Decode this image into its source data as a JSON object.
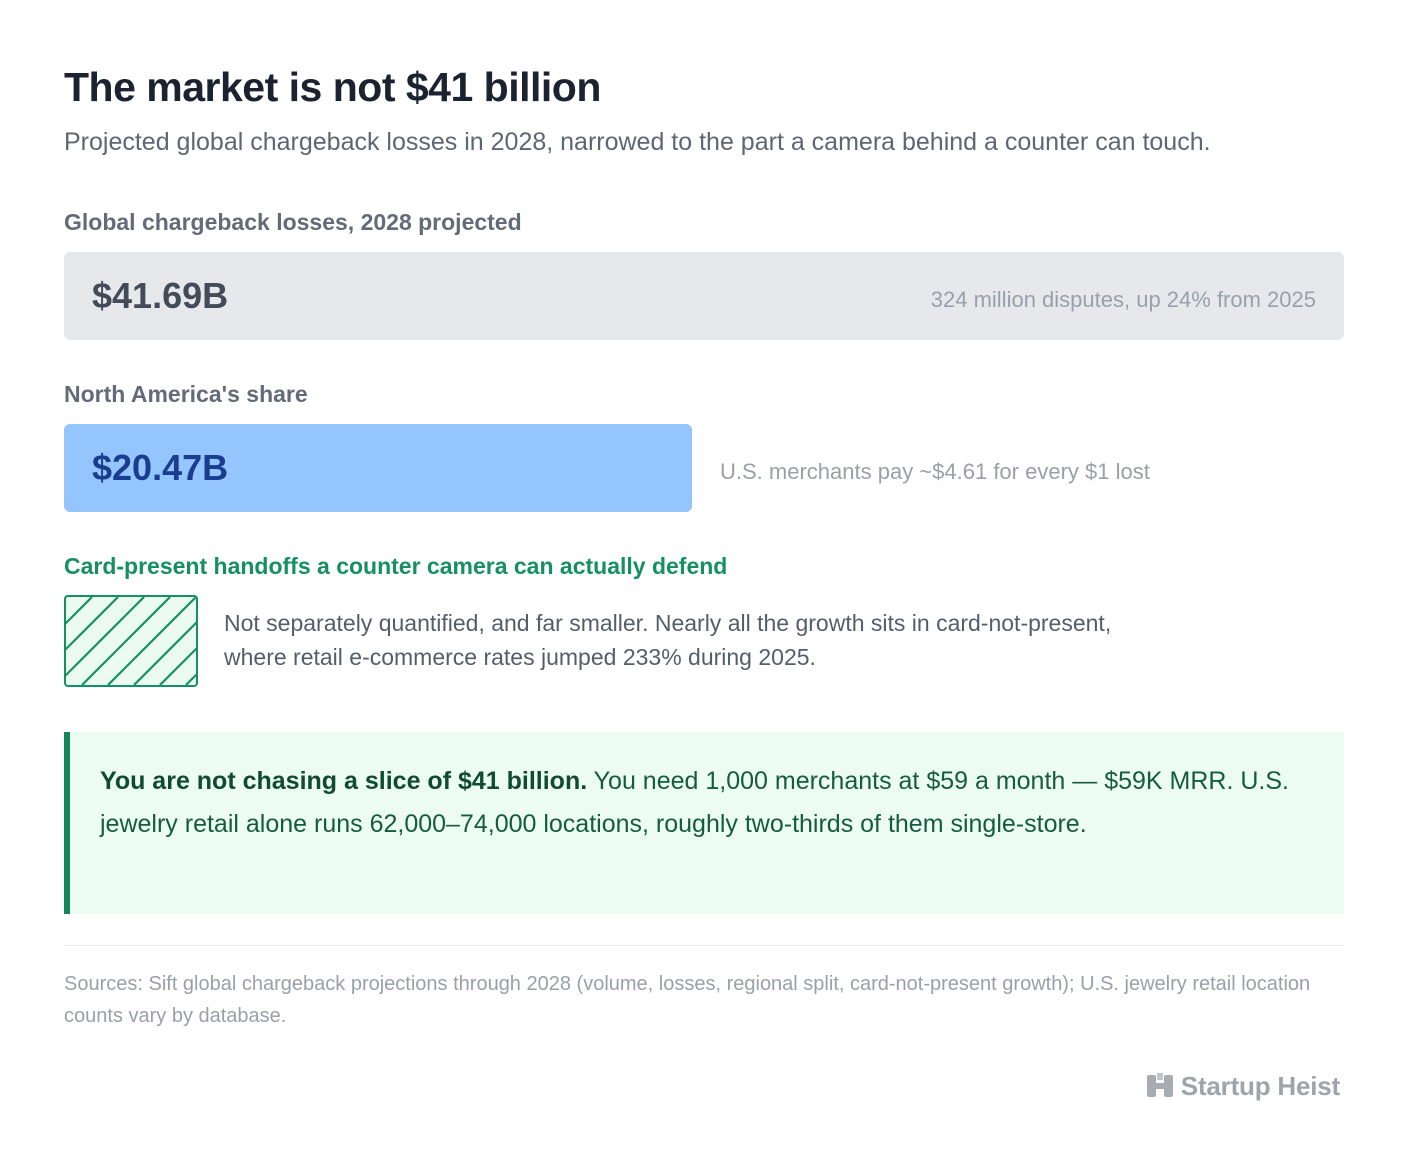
{
  "title": "The market is not $41 billion",
  "subtitle": "Projected global chargeback losses in 2028, narrowed to the part a camera behind a counter can touch.",
  "chart_data": {
    "type": "bar",
    "orientation": "horizontal",
    "categories": [
      "Global chargeback losses, 2028 projected",
      "North America's share",
      "Card-present handoffs a counter camera can actually defend"
    ],
    "values": [
      41.69,
      20.47,
      null
    ],
    "value_labels": [
      "$41.69B",
      "$20.47B",
      ""
    ],
    "notes": [
      "324 million disputes, up 24% from 2025",
      "U.S. merchants pay ~$4.61 for every $1 lost",
      "Not separately quantified, and far smaller. Nearly all the growth sits in card-not-present, where retail e-commerce rates jumped 233% during 2025."
    ],
    "unit": "billion USD",
    "xlim": [
      0,
      41.69
    ],
    "colors": [
      "#e6e8ec",
      "#94c5fc",
      "#159063"
    ],
    "grid": false
  },
  "callout": {
    "lead": "You are not chasing a slice of $41 billion.",
    "body": " You need 1,000 merchants at $59 a month — $59K MRR. U.S. jewelry retail alone runs 62,000–74,000 locations, roughly two-thirds of them single-store."
  },
  "sources": "Sources: Sift global chargeback projections through 2028 (volume, losses, regional split, card-not-present growth); U.S. jewelry retail location counts vary by database.",
  "brand": {
    "name": "Startup Heist",
    "icon": "startup-heist-logo-icon"
  },
  "colors": {
    "title": "#1b2230",
    "accent_green": "#159063",
    "callout_bg": "#edfcf2",
    "na_bar": "#94c5fc",
    "global_bar": "#e6e8ec"
  }
}
